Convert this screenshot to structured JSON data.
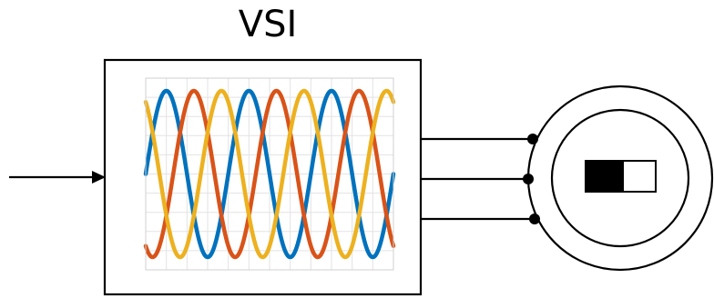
{
  "title": "VSI",
  "colors": {
    "phase_a": "#0072BD",
    "phase_b": "#D95319",
    "phase_c": "#EDB120",
    "stroke": "#000000",
    "grid": "#e3e3e3",
    "background": "#ffffff"
  },
  "chart_data": {
    "type": "line",
    "title": "",
    "xlabel": "",
    "ylabel": "",
    "grid": true,
    "ylim": [
      -1,
      1
    ],
    "xlim": [
      0,
      3
    ],
    "cycles": 3,
    "series": [
      {
        "phase_shift_deg": 0,
        "color": "#0072BD"
      },
      {
        "phase_shift_deg": 120,
        "color": "#D95319"
      },
      {
        "phase_shift_deg": 240,
        "color": "#EDB120"
      }
    ]
  },
  "motor": {
    "terminals": 3,
    "rotor_indicator": "half-filled"
  }
}
